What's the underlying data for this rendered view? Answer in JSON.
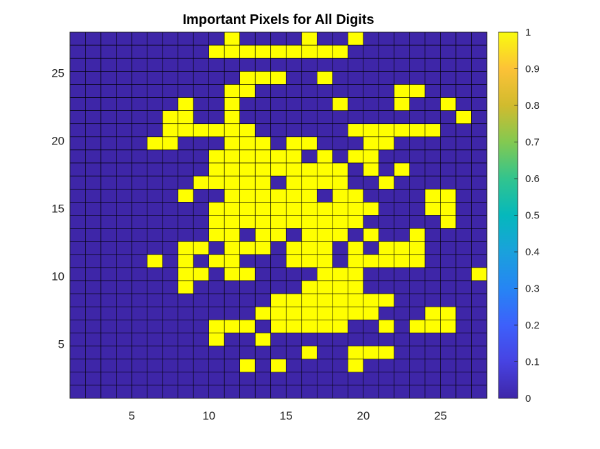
{
  "chart_data": {
    "type": "heatmap",
    "title": "Important Pixels for All Digits",
    "xlabel": "",
    "ylabel": "",
    "xlim": [
      1,
      28
    ],
    "ylim": [
      1,
      28
    ],
    "x_ticks": [
      5,
      10,
      15,
      20,
      25
    ],
    "y_ticks": [
      5,
      10,
      15,
      20,
      25
    ],
    "colorbar": {
      "range": [
        0,
        1
      ],
      "ticks": [
        0,
        0.1,
        0.2,
        0.3,
        0.4,
        0.5,
        0.6,
        0.7,
        0.8,
        0.9,
        1
      ],
      "tick_labels": [
        "0",
        "0.1",
        "0.2",
        "0.3",
        "0.4",
        "0.5",
        "0.6",
        "0.7",
        "0.8",
        "0.9",
        "1"
      ],
      "colormap": "parula"
    },
    "low_color": "#3E26A8",
    "high_color": "#FFFF00",
    "grid_color": "#000000",
    "value_rows_top_to_bottom": [
      "000000000010000100100000000",
      "000000000111111111000000000",
      "000000000000000000000000000",
      "000000000001110010000000000",
      "000000000011000000000110000",
      "000000010010000001000100100",
      "000000110010000000000000010",
      "000000111111000000111111000",
      "000001100011101100011000000",
      "000000000111111010110000000",
      "000000000111111111010100000",
      "000000001111101111001000000",
      "000000010011111101100001100",
      "000000000111111111110001100",
      "000000000111111111100000100",
      "000000000110110111010010000",
      "000000011011101110101110000",
      "000001010110001110111110000",
      "000000011011000011100000001",
      "000000010000000111100000000",
      "000000000000011111111000000",
      "000000000000111111110001100",
      "000000000111011111001011100",
      "000000000100100000000000000",
      "000000000000000100111000000",
      "000000000001010000100000000",
      "000000000000000000000000000",
      "000000000000000000000000000"
    ]
  }
}
